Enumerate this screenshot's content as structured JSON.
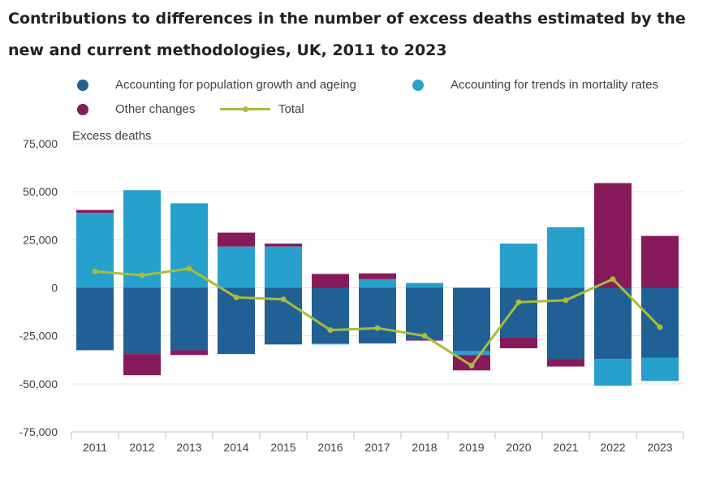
{
  "title": "Contributions to differences in the number of excess deaths estimated by the new and current methodologies, UK, 2011 to 2023",
  "colors": {
    "population": "#206095",
    "trends": "#27a0cc",
    "other": "#871a5b",
    "total": "#a8bd3a",
    "grid": "#e5e5e5",
    "axis": "#bfc3c9"
  },
  "legend": [
    {
      "label": "Accounting for population growth and ageing",
      "key": "population",
      "kind": "dot"
    },
    {
      "label": "Accounting for trends in mortality rates",
      "key": "trends",
      "kind": "dot"
    },
    {
      "label": "Other changes",
      "key": "other",
      "kind": "dot"
    },
    {
      "label": "Total",
      "key": "total",
      "kind": "line"
    }
  ],
  "chart_data": {
    "type": "bar",
    "stacked": true,
    "title": "Contributions to differences in the number of excess deaths estimated by the new and current methodologies, UK, 2011 to 2023",
    "ylabel": "Excess deaths",
    "xlabel": "",
    "ylim": [
      -75000,
      75000
    ],
    "yticks": [
      75000,
      50000,
      25000,
      0,
      -25000,
      -50000,
      -75000
    ],
    "ytick_labels": [
      "75,000",
      "50,000",
      "25,000",
      "0",
      "-25,000",
      "-50,000",
      "-75,000"
    ],
    "grid": true,
    "legend_position": "top",
    "categories": [
      "2011",
      "2012",
      "2013",
      "2014",
      "2015",
      "2016",
      "2017",
      "2018",
      "2019",
      "2020",
      "2021",
      "2022",
      "2023"
    ],
    "series": [
      {
        "name": "Accounting for population growth and ageing",
        "key": "population",
        "type": "bar",
        "values": [
          -32500,
          -34500,
          -32500,
          -34500,
          -29500,
          -29000,
          -29000,
          -27000,
          -33000,
          -26000,
          -37000,
          -37000,
          -36500
        ]
      },
      {
        "name": "Accounting for trends in mortality rates",
        "key": "trends",
        "type": "bar",
        "values": [
          39000,
          50800,
          44000,
          21500,
          21500,
          -500,
          4500,
          2500,
          -2000,
          23000,
          31500,
          -14000,
          -12000
        ]
      },
      {
        "name": "Other changes",
        "key": "other",
        "type": "bar",
        "values": [
          1500,
          -11000,
          -2500,
          7200,
          1500,
          7200,
          3000,
          -500,
          -8000,
          -5500,
          -4000,
          54500,
          27000
        ]
      },
      {
        "name": "Total",
        "key": "total",
        "type": "line",
        "values": [
          8500,
          6500,
          10000,
          -5000,
          -6000,
          -22000,
          -21000,
          -25000,
          -40500,
          -7500,
          -6500,
          4500,
          -20500
        ]
      }
    ]
  }
}
